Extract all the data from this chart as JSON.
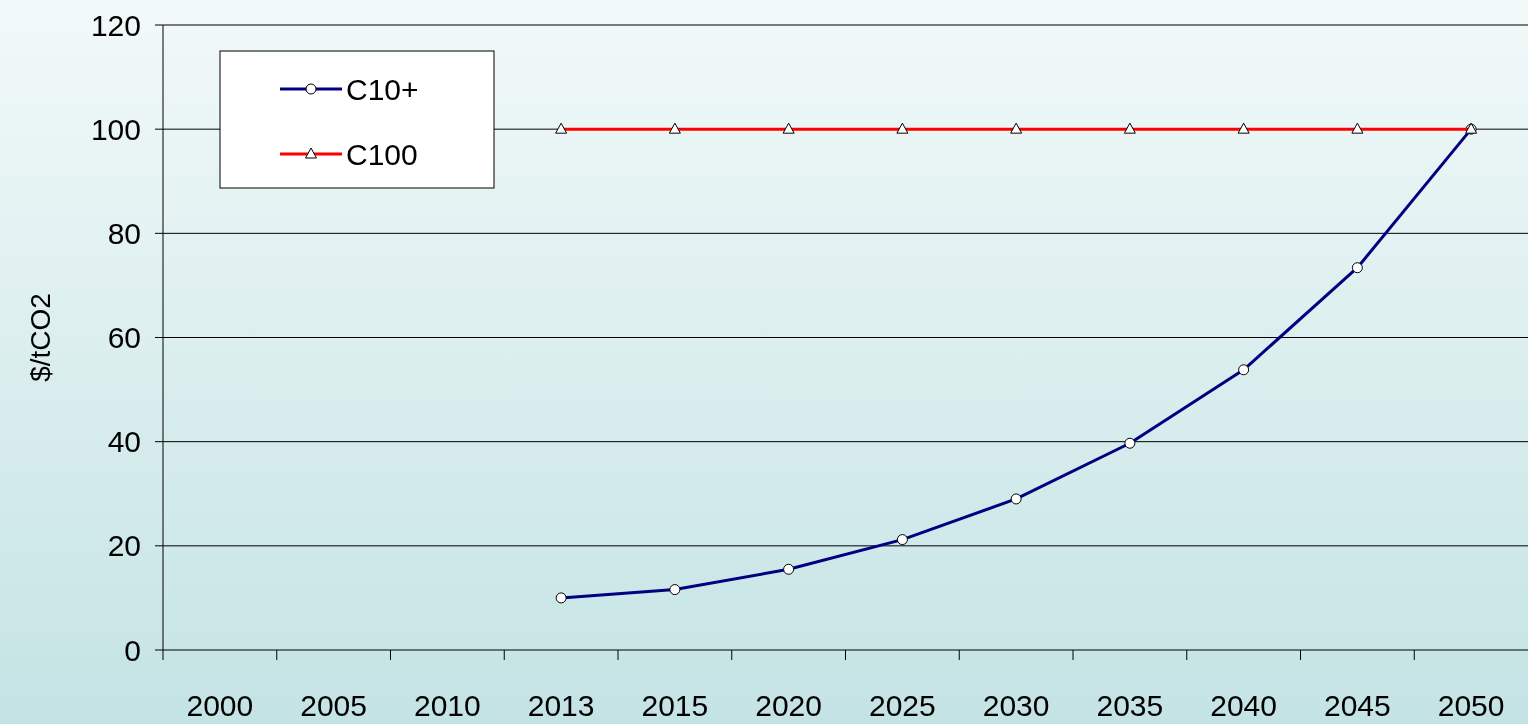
{
  "chart_data": {
    "type": "line",
    "ylabel": "$/tCO2",
    "categories": [
      "2000",
      "2005",
      "2010",
      "2013",
      "2015",
      "2020",
      "2025",
      "2030",
      "2035",
      "2040",
      "2045",
      "2050"
    ],
    "series": [
      {
        "name": "C10+",
        "color": "#000080",
        "marker": "circle",
        "values": [
          null,
          null,
          null,
          10,
          11.6,
          15.5,
          21.2,
          29,
          39.7,
          53.8,
          73.4,
          100
        ]
      },
      {
        "name": "C100",
        "color": "#ff0000",
        "marker": "triangle",
        "values": [
          null,
          null,
          null,
          100,
          100,
          100,
          100,
          100,
          100,
          100,
          100,
          100
        ]
      }
    ],
    "ylim": [
      0,
      120
    ],
    "yticks": [
      0,
      20,
      40,
      60,
      80,
      100,
      120
    ],
    "grid": "y",
    "legend": "top left",
    "line_style": "solid"
  }
}
